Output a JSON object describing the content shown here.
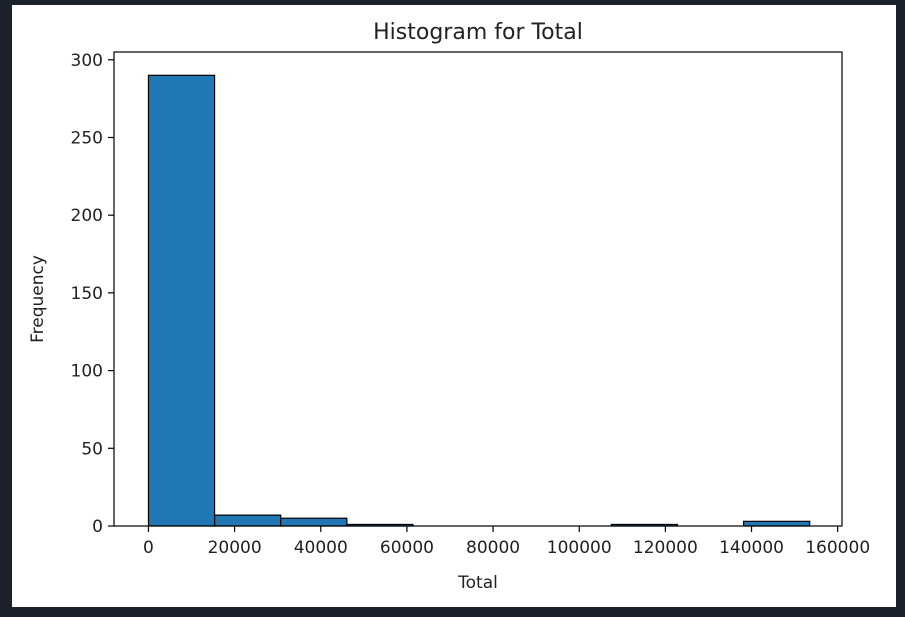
{
  "chart_data": {
    "type": "bar",
    "title": "Histogram for Total",
    "xlabel": "Total",
    "ylabel": "Frequency",
    "xlim": [
      -8000,
      161000
    ],
    "ylim": [
      0,
      305
    ],
    "grid": false,
    "bar_color": "#1f77b4",
    "edge_color": "#000000",
    "bins": [
      {
        "x0": 0,
        "x1": 15350,
        "count": 290
      },
      {
        "x0": 15350,
        "x1": 30700,
        "count": 7
      },
      {
        "x0": 30700,
        "x1": 46050,
        "count": 5
      },
      {
        "x0": 46050,
        "x1": 61400,
        "count": 1
      },
      {
        "x0": 61400,
        "x1": 76750,
        "count": 0
      },
      {
        "x0": 76750,
        "x1": 92100,
        "count": 0
      },
      {
        "x0": 92100,
        "x1": 107450,
        "count": 0
      },
      {
        "x0": 107450,
        "x1": 122800,
        "count": 1
      },
      {
        "x0": 122800,
        "x1": 138150,
        "count": 0
      },
      {
        "x0": 138150,
        "x1": 153500,
        "count": 3
      }
    ],
    "x_ticks": [
      0,
      20000,
      40000,
      60000,
      80000,
      100000,
      120000,
      140000,
      160000
    ],
    "x_tick_labels": [
      "0",
      "20000",
      "40000",
      "60000",
      "80000",
      "100000",
      "120000",
      "140000",
      "160000"
    ],
    "y_ticks": [
      0,
      50,
      100,
      150,
      200,
      250,
      300
    ],
    "y_tick_labels": [
      "0",
      "50",
      "100",
      "150",
      "200",
      "250",
      "300"
    ]
  }
}
